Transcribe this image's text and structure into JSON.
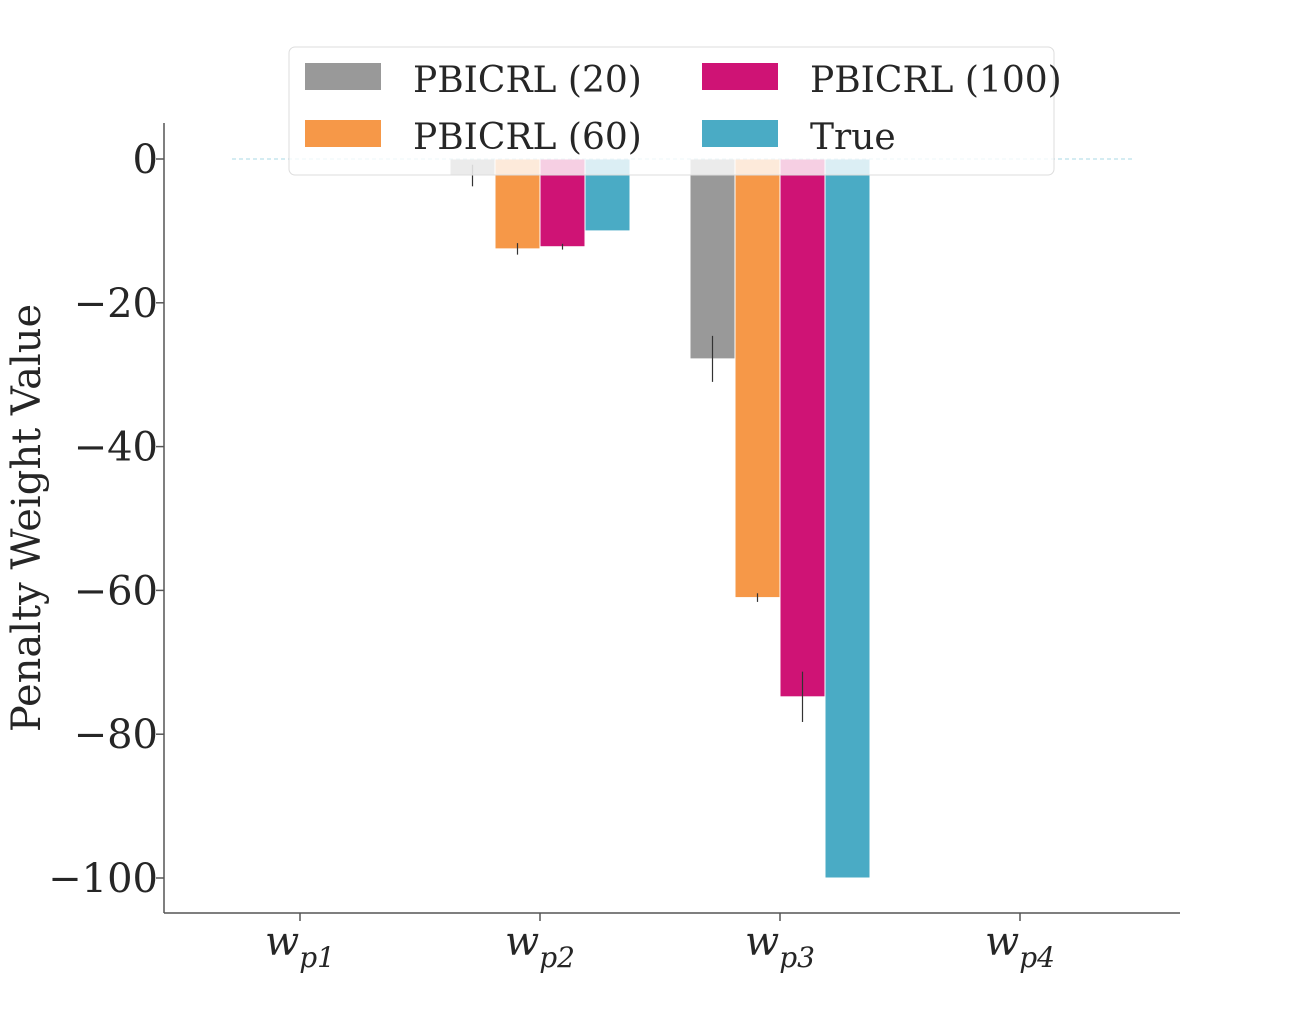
{
  "chart_data": {
    "type": "bar",
    "title": "",
    "xlabel": "",
    "ylabel": "Penalty Weight Value",
    "ylim": [
      -105,
      5
    ],
    "yticks": [
      0,
      -20,
      -40,
      -60,
      -80,
      -100
    ],
    "ytick_labels": [
      "0",
      "−20",
      "−40",
      "−60",
      "−80",
      "−100"
    ],
    "categories": [
      {
        "base": "w",
        "sub": "p1"
      },
      {
        "base": "w",
        "sub": "p2"
      },
      {
        "base": "w",
        "sub": "p3"
      },
      {
        "base": "w",
        "sub": "p4"
      }
    ],
    "series": [
      {
        "name": "PBICRL (20)",
        "color": "#999999",
        "values": [
          0,
          -2.3,
          -27.8,
          0
        ],
        "errors": [
          0,
          1.5,
          3.2,
          0
        ]
      },
      {
        "name": "PBICRL (60)",
        "color": "#f69848",
        "values": [
          0,
          -12.5,
          -61,
          0
        ],
        "errors": [
          0,
          0.8,
          0.6,
          0
        ]
      },
      {
        "name": "PBICRL (100)",
        "color": "#cf1375",
        "values": [
          0,
          -12.2,
          -74.8,
          0
        ],
        "errors": [
          0,
          0.4,
          3.5,
          0
        ]
      },
      {
        "name": "True",
        "color": "#4aabc5",
        "values": [
          0,
          -10,
          -100,
          0
        ],
        "errors": [
          0,
          0,
          0,
          0
        ]
      }
    ],
    "legend": {
      "position": "top-center",
      "columns": 2
    },
    "grid": false,
    "reference_line": {
      "y": 0,
      "style": "dashed",
      "color": "#a9d8e6"
    }
  }
}
